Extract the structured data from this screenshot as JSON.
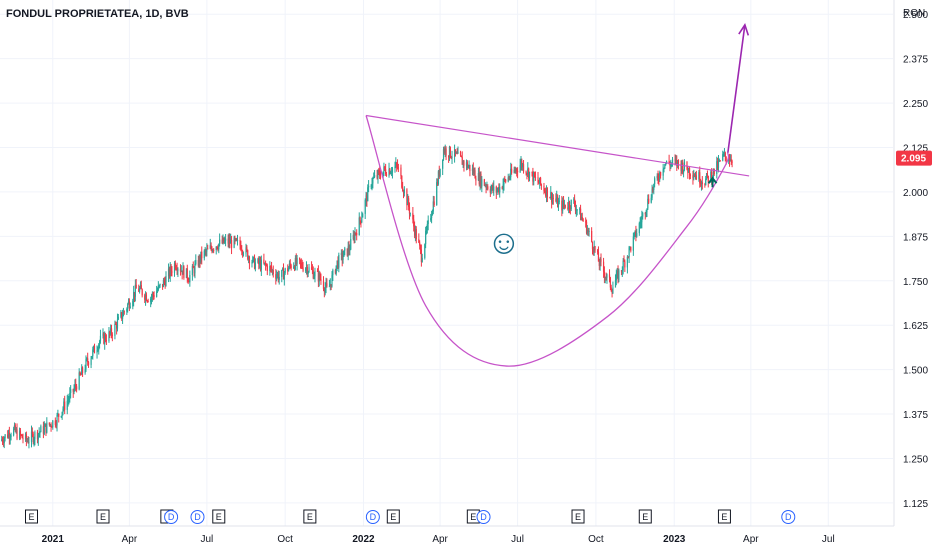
{
  "header": {
    "title": "FONDUL PROPRIETATEA, 1D, BVB"
  },
  "currency": "RON",
  "last_price": {
    "value": 2.095,
    "label": "2.095",
    "color": "#f23645"
  },
  "colors": {
    "up": "#26a69a",
    "down": "#f23645",
    "pattern": "#c654c9",
    "arrow": "#9c27b0",
    "marker": "#00695c",
    "dividend": "#2962ff"
  },
  "icons": {
    "marker": "up-arrow-icon",
    "emoji": "smiley-face-icon"
  },
  "emoji_glyph": "☺",
  "chart_data": {
    "type": "candlestick",
    "title": "FONDUL PROPRIETATEA, 1D, BVB",
    "y_unit": "RON",
    "ylim": [
      1.06,
      2.54
    ],
    "xlim": [
      "2020-10-31",
      "2023-09-15"
    ],
    "y_ticks": [
      {
        "value": 2.5,
        "label": "2.500"
      },
      {
        "value": 2.375,
        "label": "2.375"
      },
      {
        "value": 2.25,
        "label": "2.250"
      },
      {
        "value": 2.125,
        "label": "2.125"
      },
      {
        "value": 2.0,
        "label": "2.000"
      },
      {
        "value": 1.875,
        "label": "1.875"
      },
      {
        "value": 1.75,
        "label": "1.750"
      },
      {
        "value": 1.625,
        "label": "1.625"
      },
      {
        "value": 1.5,
        "label": "1.500"
      },
      {
        "value": 1.375,
        "label": "1.375"
      },
      {
        "value": 1.25,
        "label": "1.250"
      },
      {
        "value": 1.125,
        "label": "1.125"
      }
    ],
    "x_ticks": [
      {
        "date": "2021-01-01",
        "label": "2021",
        "bold": true
      },
      {
        "date": "2021-04-01",
        "label": "Apr",
        "bold": false
      },
      {
        "date": "2021-07-01",
        "label": "Jul",
        "bold": false
      },
      {
        "date": "2021-10-01",
        "label": "Oct",
        "bold": false
      },
      {
        "date": "2022-01-01",
        "label": "2022",
        "bold": true
      },
      {
        "date": "2022-04-01",
        "label": "Apr",
        "bold": false
      },
      {
        "date": "2022-07-01",
        "label": "Jul",
        "bold": false
      },
      {
        "date": "2022-10-01",
        "label": "Oct",
        "bold": false
      },
      {
        "date": "2023-01-01",
        "label": "2023",
        "bold": true
      },
      {
        "date": "2023-04-01",
        "label": "Apr",
        "bold": false
      },
      {
        "date": "2023-07-01",
        "label": "Jul",
        "bold": false
      }
    ],
    "price_path": [
      [
        "2020-10-31",
        1.3
      ],
      [
        "2020-11-15",
        1.33
      ],
      [
        "2020-12-01",
        1.3
      ],
      [
        "2020-12-20",
        1.33
      ],
      [
        "2021-01-05",
        1.36
      ],
      [
        "2021-01-25",
        1.44
      ],
      [
        "2021-02-10",
        1.52
      ],
      [
        "2021-02-25",
        1.58
      ],
      [
        "2021-03-10",
        1.6
      ],
      [
        "2021-03-25",
        1.66
      ],
      [
        "2021-04-10",
        1.73
      ],
      [
        "2021-04-25",
        1.7
      ],
      [
        "2021-05-10",
        1.74
      ],
      [
        "2021-05-25",
        1.8
      ],
      [
        "2021-06-10",
        1.76
      ],
      [
        "2021-06-25",
        1.82
      ],
      [
        "2021-07-10",
        1.85
      ],
      [
        "2021-07-25",
        1.86
      ],
      [
        "2021-08-10",
        1.85
      ],
      [
        "2021-08-25",
        1.8
      ],
      [
        "2021-09-10",
        1.79
      ],
      [
        "2021-09-25",
        1.76
      ],
      [
        "2021-10-10",
        1.8
      ],
      [
        "2021-10-25",
        1.79
      ],
      [
        "2021-11-10",
        1.76
      ],
      [
        "2021-11-20",
        1.72
      ],
      [
        "2021-12-01",
        1.8
      ],
      [
        "2021-12-15",
        1.84
      ],
      [
        "2021-12-28",
        1.92
      ],
      [
        "2022-01-10",
        2.03
      ],
      [
        "2022-01-25",
        2.06
      ],
      [
        "2022-02-10",
        2.07
      ],
      [
        "2022-02-24",
        1.95
      ],
      [
        "2022-03-10",
        1.82
      ],
      [
        "2022-03-25",
        1.98
      ],
      [
        "2022-04-05",
        2.12
      ],
      [
        "2022-04-20",
        2.1
      ],
      [
        "2022-05-05",
        2.07
      ],
      [
        "2022-05-20",
        2.03
      ],
      [
        "2022-06-05",
        2.0
      ],
      [
        "2022-06-20",
        2.04
      ],
      [
        "2022-07-05",
        2.08
      ],
      [
        "2022-07-20",
        2.04
      ],
      [
        "2022-08-05",
        2.0
      ],
      [
        "2022-08-20",
        1.96
      ],
      [
        "2022-09-05",
        1.97
      ],
      [
        "2022-09-20",
        1.9
      ],
      [
        "2022-10-05",
        1.8
      ],
      [
        "2022-10-20",
        1.73
      ],
      [
        "2022-11-05",
        1.81
      ],
      [
        "2022-11-20",
        1.9
      ],
      [
        "2022-12-05",
        2.0
      ],
      [
        "2022-12-20",
        2.08
      ],
      [
        "2023-01-05",
        2.08
      ],
      [
        "2023-01-20",
        2.06
      ],
      [
        "2023-02-05",
        2.03
      ],
      [
        "2023-02-15",
        2.05
      ],
      [
        "2023-02-28",
        2.1
      ],
      [
        "2023-03-10",
        2.095
      ]
    ],
    "annotations": {
      "trendline": [
        [
          "2022-01-04",
          2.215
        ],
        [
          "2023-03-30",
          2.045
        ]
      ],
      "cup": [
        [
          "2022-01-04",
          2.215
        ],
        [
          "2022-03-15",
          1.68
        ],
        [
          "2022-06-18",
          1.51
        ],
        [
          "2022-10-15",
          1.65
        ],
        [
          "2023-01-15",
          1.9
        ],
        [
          "2023-03-01",
          2.07
        ],
        [
          "2023-03-05",
          2.11
        ]
      ],
      "projection": [
        [
          "2023-03-05",
          2.11
        ],
        [
          "2023-03-25",
          2.47
        ]
      ],
      "smiley_at": [
        "2022-06-15",
        1.86
      ],
      "marker_at": [
        "2023-02-15",
        2.03
      ]
    },
    "events": [
      {
        "date": "2020-12-07",
        "label": "E"
      },
      {
        "date": "2021-03-01",
        "label": "E"
      },
      {
        "date": "2021-05-15",
        "label": "E"
      },
      {
        "date": "2021-05-20",
        "label": "D"
      },
      {
        "date": "2021-06-20",
        "label": "D"
      },
      {
        "date": "2021-07-15",
        "label": "E"
      },
      {
        "date": "2021-10-30",
        "label": "E"
      },
      {
        "date": "2022-01-12",
        "label": "D"
      },
      {
        "date": "2022-02-05",
        "label": "E"
      },
      {
        "date": "2022-05-10",
        "label": "E"
      },
      {
        "date": "2022-05-22",
        "label": "D"
      },
      {
        "date": "2022-09-10",
        "label": "E"
      },
      {
        "date": "2022-11-28",
        "label": "E"
      },
      {
        "date": "2023-03-01",
        "label": "E"
      },
      {
        "date": "2023-05-15",
        "label": "D"
      }
    ]
  }
}
